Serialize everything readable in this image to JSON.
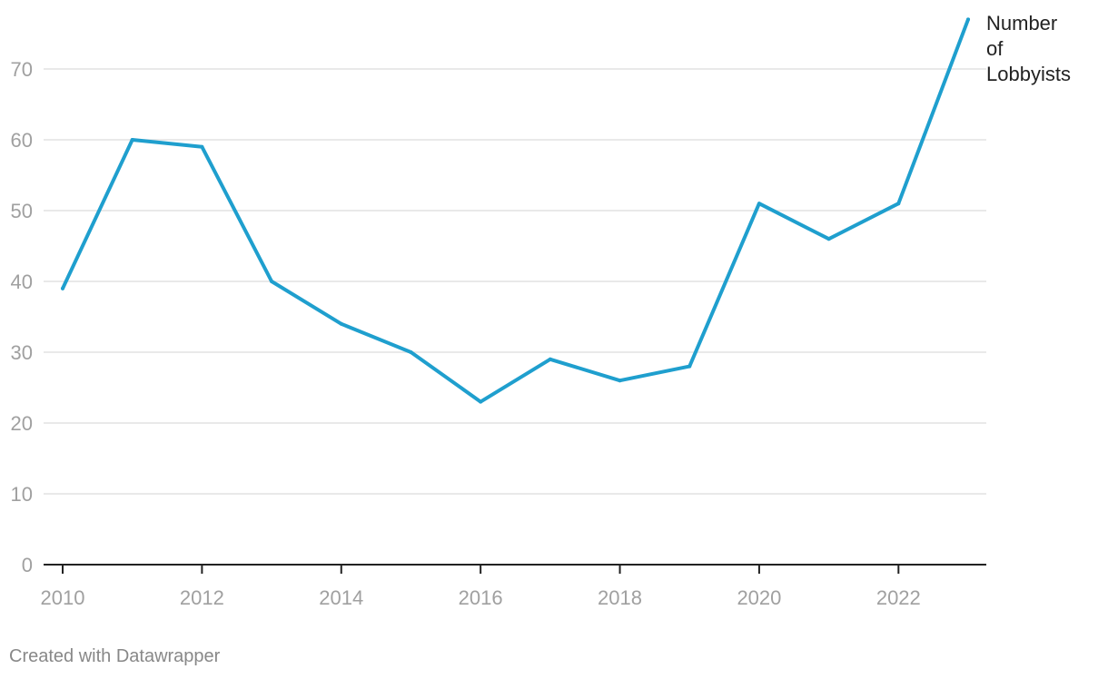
{
  "chart_data": {
    "type": "line",
    "x": [
      2010,
      2011,
      2012,
      2013,
      2014,
      2015,
      2016,
      2017,
      2018,
      2019,
      2020,
      2021,
      2022,
      2023
    ],
    "series": [
      {
        "name": "Number of Lobbyists",
        "name_lines": [
          "Number",
          "of",
          "Lobbyists"
        ],
        "values": [
          39,
          60,
          59,
          40,
          34,
          30,
          23,
          29,
          26,
          28,
          51,
          46,
          51,
          77
        ],
        "color": "#1f9fce"
      }
    ],
    "x_ticks": [
      "2010",
      "2012",
      "2014",
      "2016",
      "2018",
      "2020",
      "2022"
    ],
    "y_ticks": [
      "0",
      "10",
      "20",
      "30",
      "40",
      "50",
      "60",
      "70"
    ],
    "xlim": [
      2010,
      2023
    ],
    "ylim": [
      0,
      77
    ],
    "grid": true,
    "legend": "direct label at line end",
    "xlabel": "",
    "ylabel": ""
  },
  "footer": {
    "credit": "Created with Datawrapper"
  }
}
